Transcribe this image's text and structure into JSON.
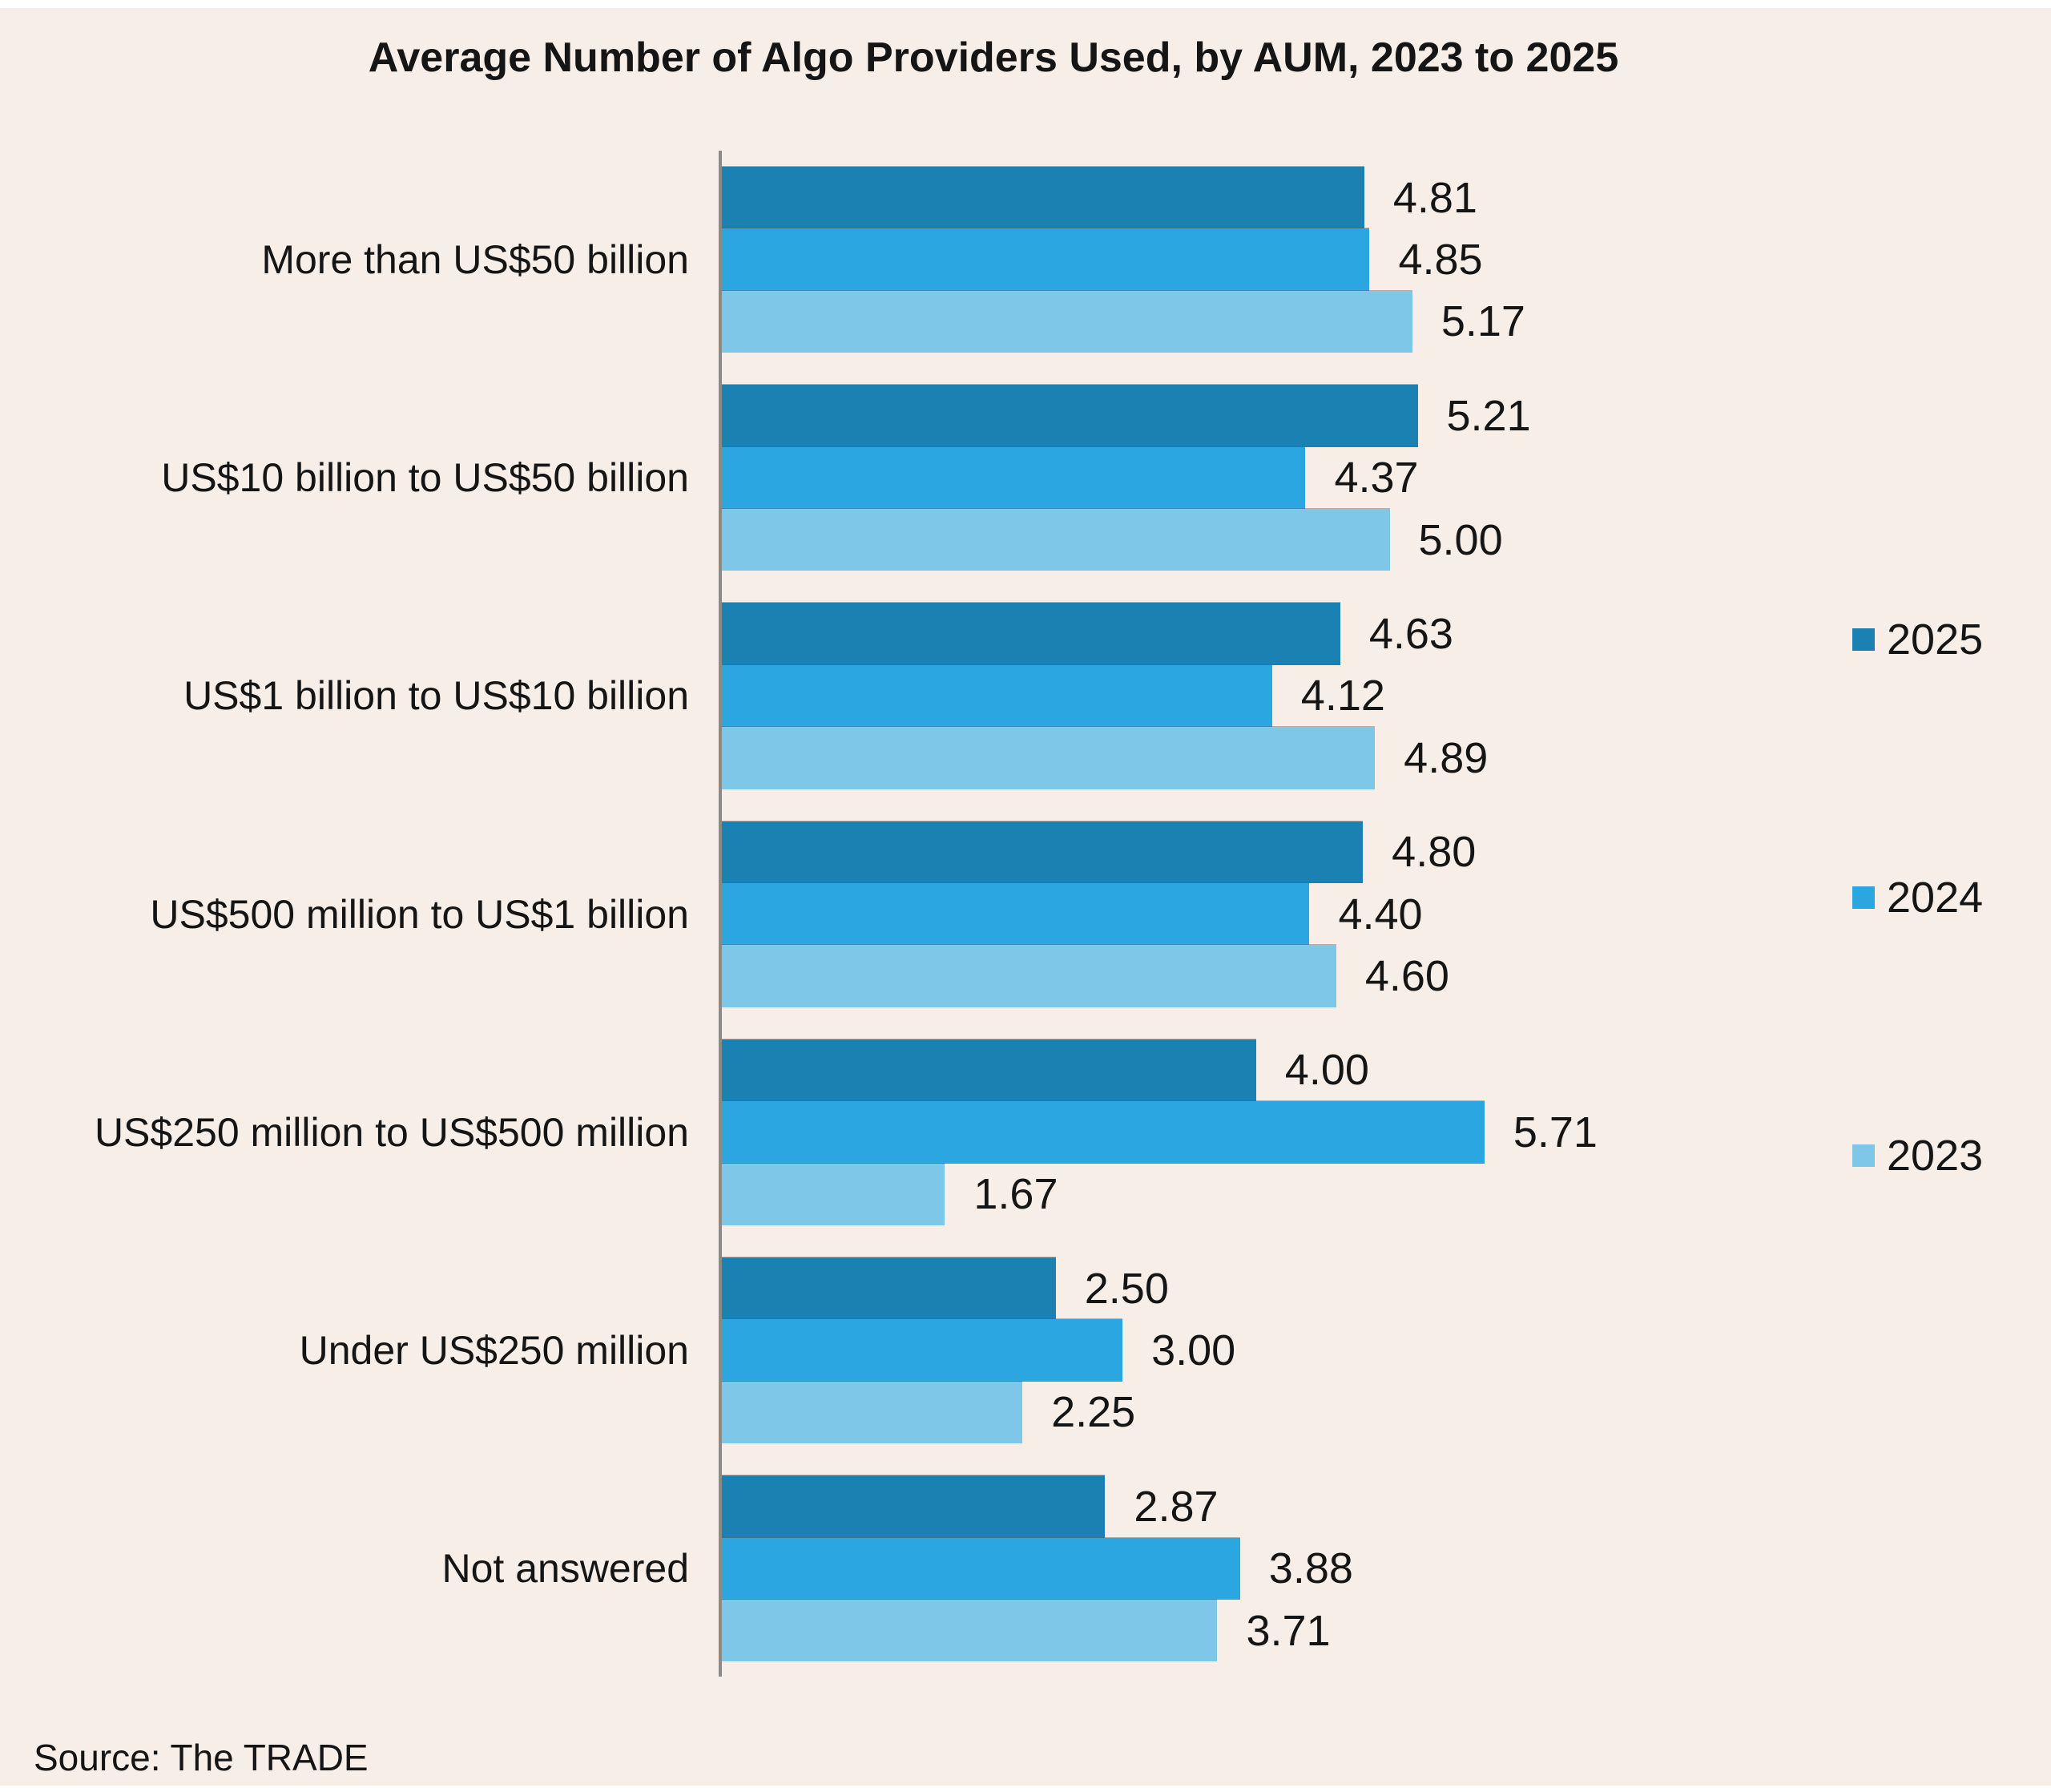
{
  "chart_data": {
    "type": "bar",
    "orientation": "horizontal",
    "title": "Average Number of Algo Providers Used, by AUM, 2023 to 2025",
    "categories": [
      "More than US$50 billion",
      "US$10 billion to US$50 billion",
      "US$1 billion to US$10 billion",
      "US$500 million to US$1 billion",
      "US$250 million to US$500 million",
      "Under US$250 million",
      "Not answered"
    ],
    "series": [
      {
        "name": "2025",
        "color": "#1b80b2",
        "values": [
          4.81,
          5.21,
          4.63,
          4.8,
          4.0,
          2.5,
          2.87
        ]
      },
      {
        "name": "2024",
        "color": "#2ca6e0",
        "values": [
          4.85,
          4.37,
          4.12,
          4.4,
          5.71,
          3.0,
          3.88
        ]
      },
      {
        "name": "2023",
        "color": "#7ec7e9",
        "values": [
          5.17,
          5.0,
          4.89,
          4.6,
          1.67,
          2.25,
          3.71
        ]
      }
    ],
    "value_label_decimals": 2,
    "xlim": [
      0,
      6
    ],
    "grid": false,
    "legend_position": "right"
  },
  "source": {
    "text": "Source: The TRADE"
  },
  "colors": {
    "background": "#f7eee7",
    "axis": "#8a8a8a",
    "text": "#151515"
  }
}
